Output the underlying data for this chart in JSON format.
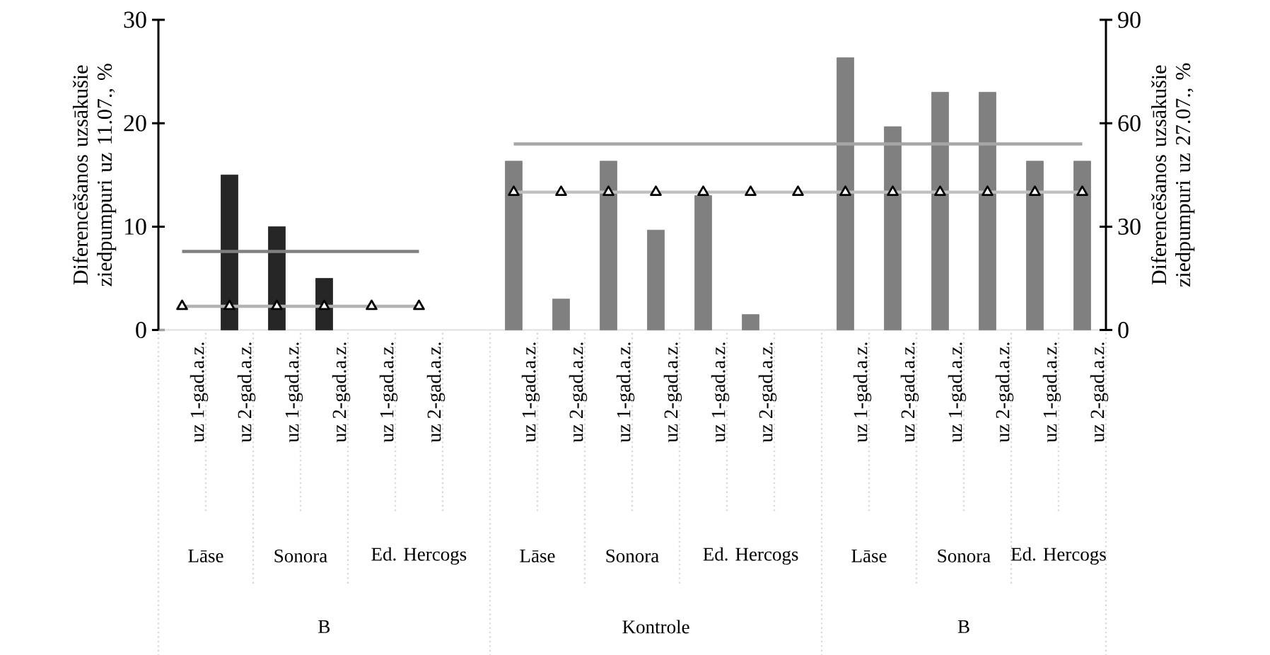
{
  "chart_data": {
    "type": "bar",
    "ylabel": "Diferencēšanos uzsākušie ziedpumpuri uz 11.07., %",
    "y2label": "Diferencēšanos uzsākušie ziedpumpuri uz 27.07., %",
    "categories": [
      "uz 1-gad.a.z.",
      "uz 2-gad.a.z.",
      "uz 1-gad.a.z.",
      "uz 2-gad.a.z.",
      "uz 1-gad.a.z.",
      "uz 2-gad.a.z.",
      null,
      "uz 1-gad.a.z.",
      "uz 2-gad.a.z.",
      "uz 1-gad.a.z.",
      "uz 2-gad.a.z.",
      "uz 1-gad.a.z.",
      "uz 2-gad.a.z.",
      null,
      "uz 1-gad.a.z.",
      "uz 2-gad.a.z.",
      "uz 1-gad.a.z.",
      "uz 2-gad.a.z.",
      "uz 1-gad.a.z.",
      "uz 2-gad.a.z."
    ],
    "annotations": [
      "Lāse",
      "Sonora",
      "Ed. Hercogs",
      "Lāse",
      "Sonora",
      "Ed. Hercogs",
      "Lāse",
      "Sonora",
      "Ed. Hercogs",
      "B",
      "Kontrole",
      "B"
    ],
    "series": [
      {
        "color": "#262626",
        "values": [
          null,
          15,
          10,
          5,
          null,
          null,
          null,
          null,
          null,
          null,
          null,
          null,
          null,
          null,
          null,
          null,
          null,
          null,
          null,
          null
        ]
      },
      {
        "axis": "y2",
        "color": "#808080",
        "values": [
          null,
          null,
          null,
          null,
          null,
          null,
          null,
          49,
          9,
          49,
          29,
          39,
          4.5,
          null,
          79,
          59,
          69,
          69,
          49,
          49
        ]
      },
      {
        "type": "line",
        "color": "#808080",
        "marker": "none",
        "values": [
          7.6,
          7.6,
          7.6,
          7.6,
          7.6,
          7.6,
          null,
          null,
          null,
          null,
          null,
          null,
          null,
          null,
          null,
          null,
          null,
          null,
          null,
          null
        ]
      },
      {
        "type": "line",
        "color": "#b2b2b2",
        "marker": "triangle",
        "values": [
          2.3,
          2.3,
          2.3,
          2.3,
          2.3,
          2.3,
          null,
          null,
          null,
          null,
          null,
          null,
          null,
          null,
          null,
          null,
          null,
          null,
          null,
          null
        ]
      },
      {
        "type": "line",
        "axis": "y2",
        "color": "#a6a6a6",
        "marker": "none",
        "values": [
          null,
          null,
          null,
          null,
          null,
          null,
          null,
          54,
          54,
          54,
          54,
          54,
          54,
          54,
          54,
          54,
          54,
          54,
          54,
          54
        ]
      },
      {
        "type": "line",
        "axis": "y2",
        "color": "#bfbfbf",
        "marker": "triangle",
        "values": [
          null,
          null,
          null,
          null,
          null,
          null,
          null,
          40,
          40,
          40,
          40,
          40,
          40,
          40,
          40,
          40,
          40,
          40,
          40,
          40
        ]
      }
    ],
    "ylim": [
      0,
      30
    ],
    "yticks": [
      0,
      10,
      20,
      30
    ],
    "y2lim": [
      0,
      90
    ],
    "y2ticks": [
      0,
      30,
      60,
      90
    ],
    "line_style": "solid",
    "grid": false
  }
}
